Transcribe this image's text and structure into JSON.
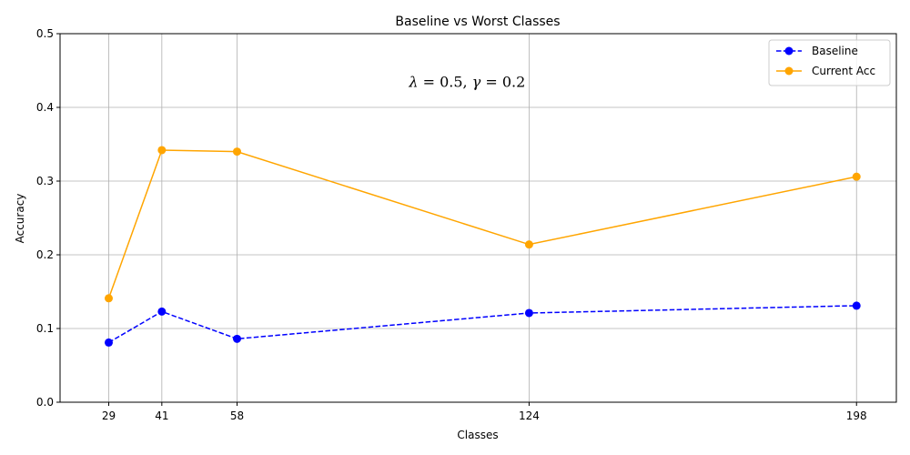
{
  "chart_data": {
    "type": "line",
    "title": "Baseline vs Worst Classes",
    "xlabel": "Classes",
    "ylabel": "Accuracy",
    "x": [
      29,
      41,
      58,
      124,
      198
    ],
    "x_tick_labels": [
      "29",
      "41",
      "58",
      "124",
      "198"
    ],
    "xlim": [
      18,
      207
    ],
    "ylim": [
      0,
      0.5
    ],
    "y_ticks": [
      0.0,
      0.1,
      0.2,
      0.3,
      0.4,
      0.5
    ],
    "y_tick_labels": [
      "0.0",
      "0.1",
      "0.2",
      "0.3",
      "0.4",
      "0.5"
    ],
    "grid": true,
    "legend_position": "top-right",
    "annotation": {
      "text": "λ = 0.5, γ = 0.2",
      "lambda": "λ",
      "lambda_value": " = 0.5, ",
      "gamma": "γ",
      "gamma_value": " = 0.2",
      "x": 110,
      "y": 0.435
    },
    "series": [
      {
        "name": "Baseline",
        "color": "#0000ff",
        "line_style": "dashed",
        "marker": "circle",
        "values": [
          0.081,
          0.123,
          0.086,
          0.121,
          0.131
        ]
      },
      {
        "name": "Current Acc",
        "color": "#ffa500",
        "line_style": "solid",
        "marker": "circle",
        "values": [
          0.141,
          0.342,
          0.34,
          0.214,
          0.306
        ]
      }
    ]
  }
}
